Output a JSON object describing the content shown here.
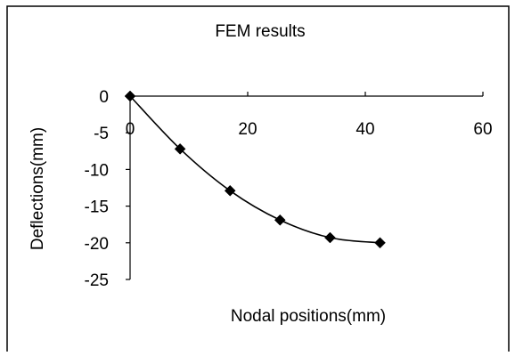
{
  "chart_data": {
    "type": "line",
    "title": "FEM results",
    "xlabel": "Nodal positions(mm)",
    "ylabel": "Deflections(mm)",
    "xlim": [
      0,
      60
    ],
    "ylim": [
      -25,
      0
    ],
    "xticks": [
      0,
      20,
      40,
      60
    ],
    "xtick_labels": [
      "0",
      "20",
      "40",
      "60"
    ],
    "yticks": [
      0,
      -5,
      -10,
      -15,
      -20,
      -25
    ],
    "ytick_labels": [
      "0",
      "-5",
      "-10",
      "-15",
      "-20",
      "-25"
    ],
    "grid": false,
    "marker": "diamond",
    "series": [
      {
        "color": "#000000",
        "x": [
          0,
          8.5,
          17,
          25.5,
          34,
          42.5
        ],
        "y": [
          0,
          -7.2,
          -12.9,
          -16.9,
          -19.3,
          -20.0
        ]
      }
    ]
  }
}
